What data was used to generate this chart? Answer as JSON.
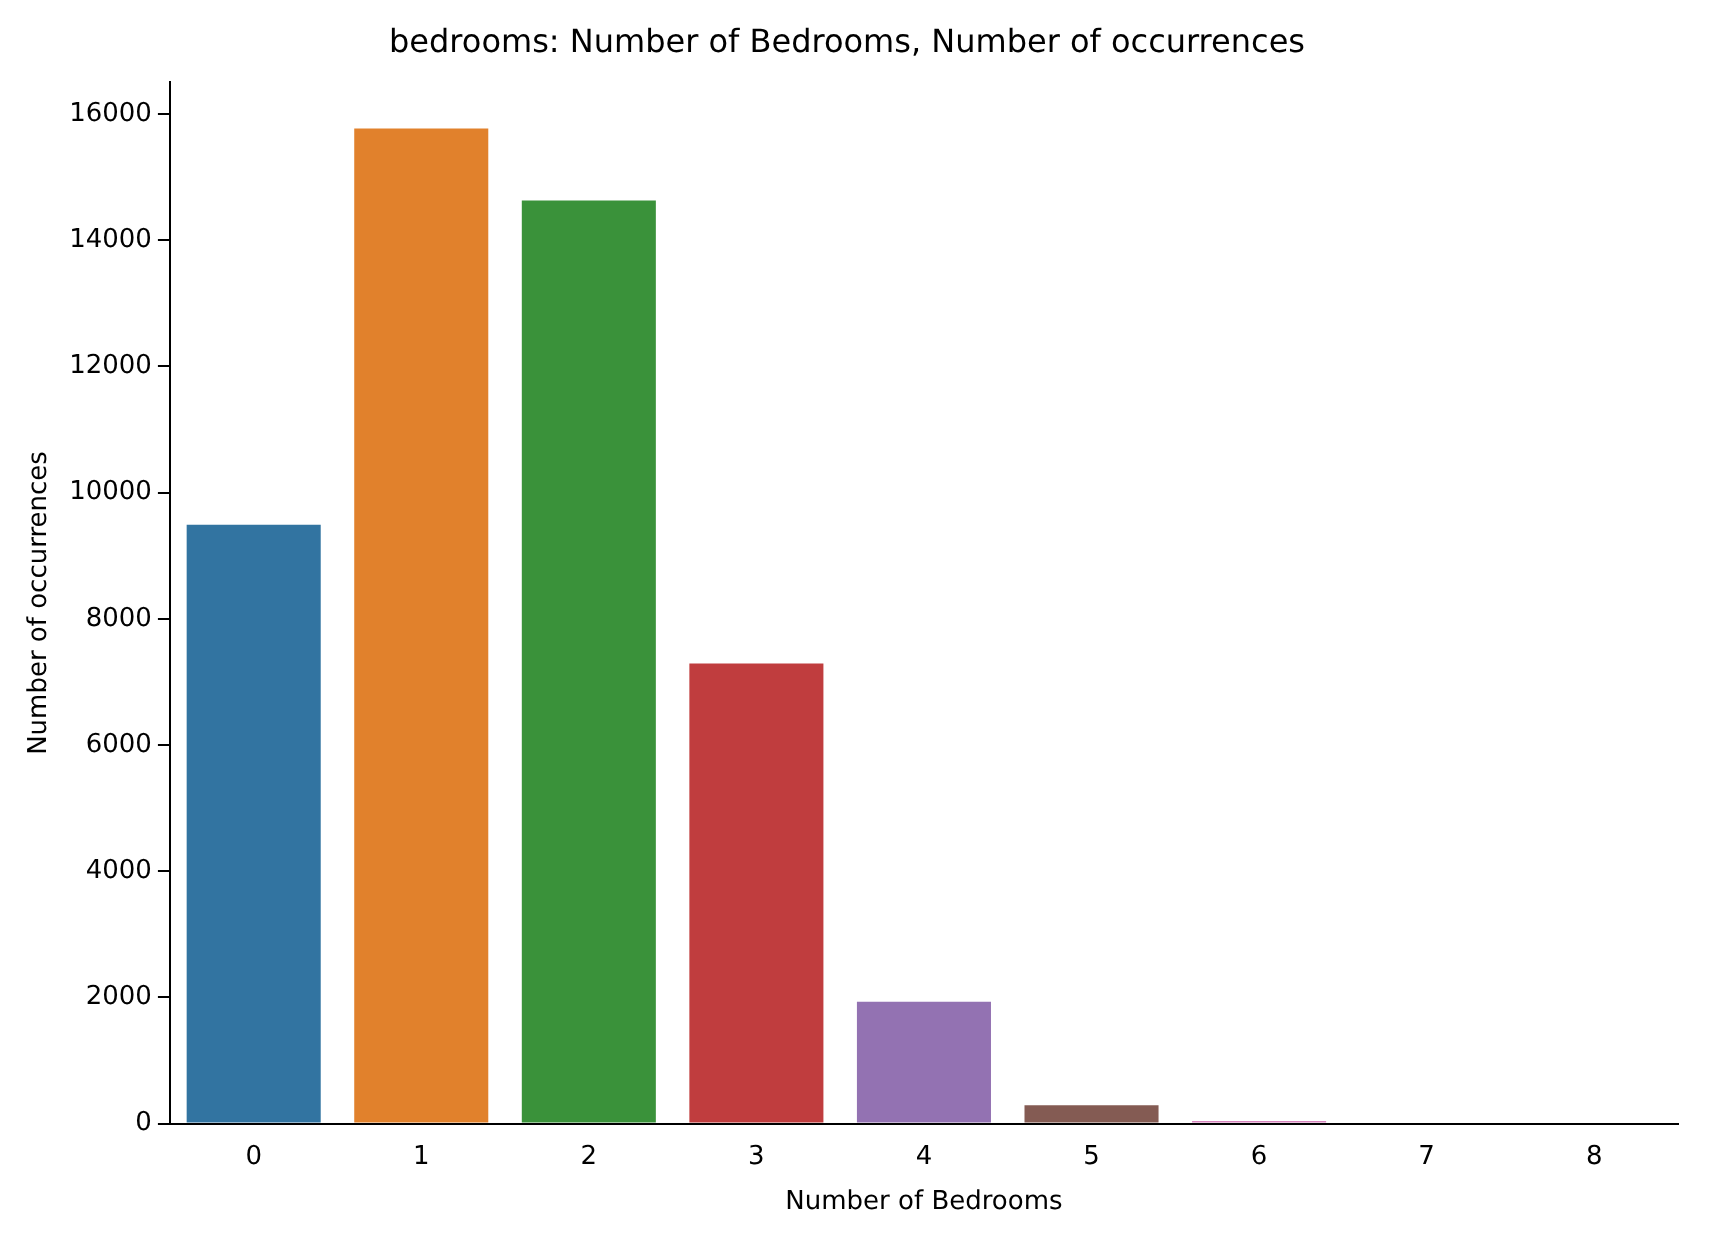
{
  "chart_data": {
    "type": "bar",
    "title": "bedrooms: Number of Bedrooms, Number of occurrences",
    "xlabel": "Number of Bedrooms",
    "ylabel": "Number of occurrences",
    "categories": [
      "0",
      "1",
      "2",
      "3",
      "4",
      "5",
      "6",
      "7",
      "8"
    ],
    "values": [
      9490,
      15770,
      14630,
      7290,
      1930,
      290,
      40,
      0,
      0
    ],
    "colors": [
      "#3274a1",
      "#e1812c",
      "#3a923a",
      "#c03d3e",
      "#9372b2",
      "#845b53",
      "#d684bd",
      "#7f7f7f",
      "#a9aa35"
    ],
    "ylim": [
      0,
      16500
    ],
    "yticks": [
      0,
      2000,
      4000,
      6000,
      8000,
      10000,
      12000,
      14000,
      16000
    ],
    "grid": false,
    "legend": false
  }
}
